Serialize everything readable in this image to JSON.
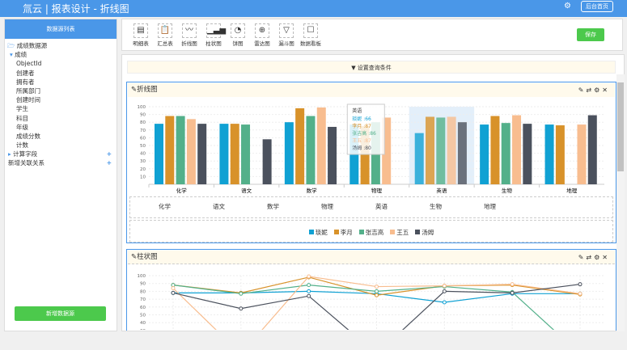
{
  "header": {
    "title": "氚云 | 报表设计 - 折线图",
    "home_button": "后台首页"
  },
  "sidebar": {
    "title": "数据源列表",
    "root": "成绩数据源",
    "group": "成绩",
    "fields": [
      "ObjectId",
      "创建者",
      "拥有者",
      "所属部门",
      "创建时间",
      "学生",
      "科目",
      "年级",
      "成绩分数",
      "计数"
    ],
    "computed": "计算字段",
    "relation": "新增关联关系",
    "new_button": "新增数据源"
  },
  "toolbar": {
    "tools": [
      {
        "label": "明细表",
        "icon": "▤"
      },
      {
        "label": "汇总表",
        "icon": "📋"
      },
      {
        "label": "折线图",
        "icon": "〰"
      },
      {
        "label": "柱状图",
        "icon": "▁▃▅"
      },
      {
        "label": "饼图",
        "icon": "◔"
      },
      {
        "label": "雷达图",
        "icon": "⊕"
      },
      {
        "label": "漏斗图",
        "icon": "▽"
      },
      {
        "label": "数据看板",
        "icon": "☐"
      }
    ],
    "save": "保存"
  },
  "filter": {
    "label": "▼ 设置查询条件"
  },
  "panel1": {
    "title": "折线图",
    "categories_row": [
      "化学",
      "语文",
      "数学",
      "物理",
      "英语",
      "生物",
      "地理"
    ]
  },
  "panel2": {
    "title": "柱状图"
  },
  "tooltip": {
    "title": "英语",
    "rows": [
      "琰妮 :66",
      "李月 :87",
      "张吉高 :86",
      "王五 :87",
      "汤姆 :80"
    ]
  },
  "chart_data": {
    "type": "bar",
    "categories": [
      "化学",
      "语文",
      "数学",
      "物理",
      "英语",
      "生物",
      "地理"
    ],
    "ylim": [
      0,
      100
    ],
    "yticks": [
      10,
      20,
      30,
      40,
      50,
      60,
      70,
      80,
      90,
      100
    ],
    "series": [
      {
        "name": "琰妮",
        "color": "#10a1d3",
        "values": [
          78,
          78,
          80,
          77,
          66,
          77,
          77
        ]
      },
      {
        "name": "李月",
        "color": "#d8922a",
        "values": [
          88,
          78,
          98,
          75,
          87,
          88,
          76
        ]
      },
      {
        "name": "张吉高",
        "color": "#53b08a",
        "values": [
          88,
          77,
          88,
          80,
          86,
          79,
          0
        ]
      },
      {
        "name": "王五",
        "color": "#f8bd8f",
        "values": [
          84,
          0,
          99,
          86,
          87,
          89,
          77
        ]
      },
      {
        "name": "汤姆",
        "color": "#4b515d",
        "values": [
          78,
          58,
          74,
          0,
          80,
          78,
          89
        ]
      }
    ]
  }
}
